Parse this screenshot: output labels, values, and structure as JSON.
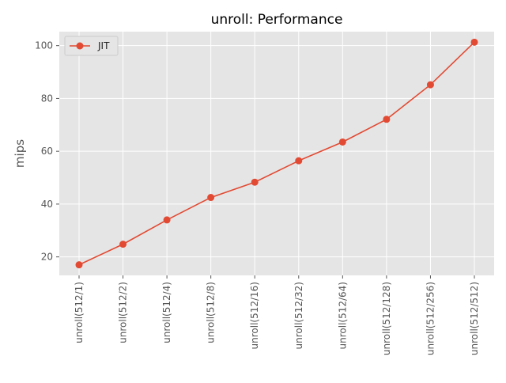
{
  "chart_data": {
    "type": "line",
    "title": "unroll: Performance",
    "xlabel": "",
    "ylabel": "mips",
    "categories": [
      "unroll(512/1)",
      "unroll(512/2)",
      "unroll(512/4)",
      "unroll(512/8)",
      "unroll(512/16)",
      "unroll(512/32)",
      "unroll(512/64)",
      "unroll(512/128)",
      "unroll(512/256)",
      "unroll(512/512)"
    ],
    "series": [
      {
        "name": "JIT",
        "color": "#E24A33",
        "marker": "circle",
        "values": [
          17.0,
          24.8,
          34.0,
          42.5,
          48.3,
          56.4,
          63.5,
          72.1,
          85.2,
          101.3
        ]
      }
    ],
    "ylim": [
      13,
      105.3
    ],
    "yticks": [
      20,
      40,
      60,
      80,
      100
    ],
    "grid": true,
    "legend_position": "top-left",
    "style": {
      "plot_background": "#E5E5E5",
      "grid_color": "#FFFFFF",
      "tick_label_color": "#555555",
      "title_color": "#000000"
    }
  }
}
